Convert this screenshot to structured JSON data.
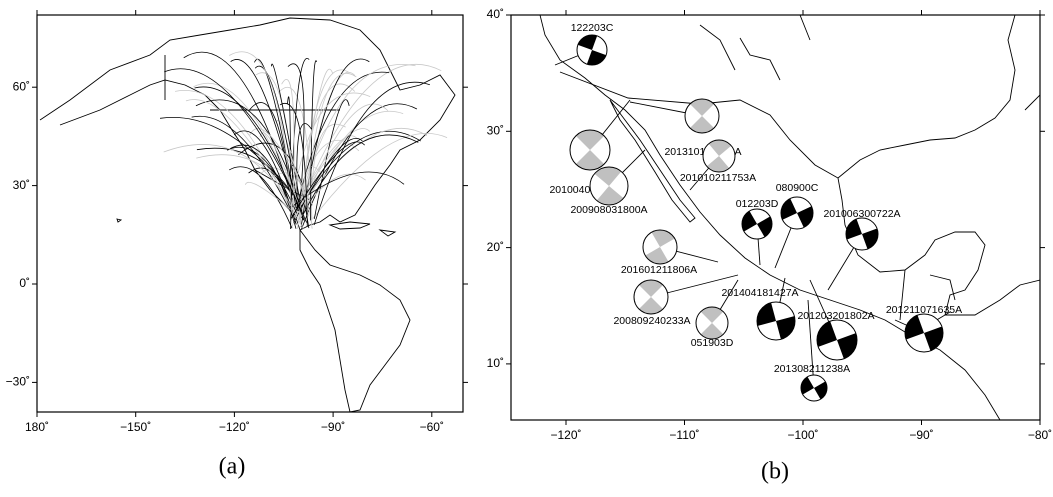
{
  "panels": [
    {
      "caption": "(a)",
      "xticks": [
        {
          "value": 180,
          "label": "180˚"
        },
        {
          "value": -150,
          "label": "−150˚"
        },
        {
          "value": -120,
          "label": "−120˚"
        },
        {
          "value": -90,
          "label": "−90˚"
        },
        {
          "value": -60,
          "label": "−60˚"
        }
      ],
      "yticks": [
        {
          "value": 60,
          "label": "60˚"
        },
        {
          "value": 30,
          "label": "30˚"
        },
        {
          "value": 0,
          "label": "0˚"
        },
        {
          "value": -30,
          "label": "−30˚"
        }
      ]
    },
    {
      "caption": "(b)",
      "xticks": [
        {
          "value": -120,
          "label": "−120˚"
        },
        {
          "value": -110,
          "label": "−110˚"
        },
        {
          "value": -100,
          "label": "−100˚"
        },
        {
          "value": -90,
          "label": "−90˚"
        },
        {
          "value": -80,
          "label": "−80˚"
        }
      ],
      "yticks": [
        {
          "value": 40,
          "label": "40˚"
        },
        {
          "value": 30,
          "label": "30˚"
        },
        {
          "value": 20,
          "label": "20˚"
        },
        {
          "value": 10,
          "label": "10˚"
        }
      ],
      "events": [
        {
          "label": "122203C"
        },
        {
          "label": "201004042240A"
        },
        {
          "label": "201310191754A"
        },
        {
          "label": "201010211753A"
        },
        {
          "label": "200908031800A"
        },
        {
          "label": "012203D"
        },
        {
          "label": "080900C"
        },
        {
          "label": "201006300722A"
        },
        {
          "label": "201601211806A"
        },
        {
          "label": "201404181427A"
        },
        {
          "label": "201203201802A"
        },
        {
          "label": "201211071635A"
        },
        {
          "label": "200809240233A"
        },
        {
          "label": "051903D"
        },
        {
          "label": "201308211238A"
        }
      ]
    }
  ]
}
